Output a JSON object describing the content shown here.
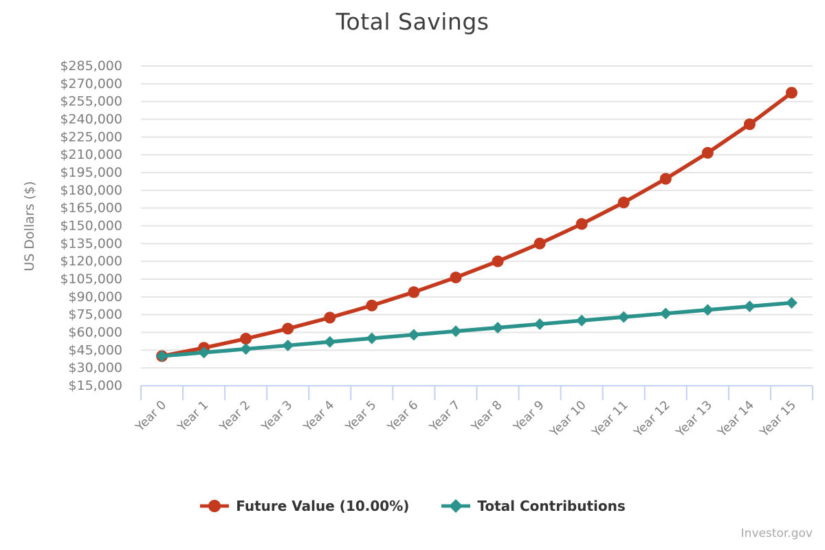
{
  "watermark": "Investor.gov",
  "chart_data": {
    "type": "line",
    "title": "Total Savings",
    "xlabel": "",
    "ylabel": "US Dollars ($)",
    "x_categories": [
      "Year 0",
      "Year 1",
      "Year 2",
      "Year 3",
      "Year 4",
      "Year 5",
      "Year 6",
      "Year 7",
      "Year 8",
      "Year 9",
      "Year 10",
      "Year 11",
      "Year 12",
      "Year 13",
      "Year 14",
      "Year 15"
    ],
    "ylim": [
      15000,
      285000
    ],
    "ytick_step": 15000,
    "ytick_prefix": "$",
    "grid": true,
    "grid_color": "#e4e4e4",
    "axis_color": "#c2d1f0",
    "legend_position": "bottom",
    "series": [
      {
        "name": "Future Value (10.00%)",
        "color": "#c33a1f",
        "marker": "circle",
        "values": [
          40000,
          47000,
          54700,
          63170,
          72487,
          82736,
          94009,
          106410,
          120051,
          135056,
          151562,
          169718,
          189690,
          211659,
          235825,
          262407
        ]
      },
      {
        "name": "Total Contributions",
        "color": "#2b938c",
        "marker": "diamond",
        "values": [
          40000,
          43000,
          46000,
          49000,
          52000,
          55000,
          58000,
          61000,
          64000,
          67000,
          70000,
          73000,
          76000,
          79000,
          82000,
          85000
        ]
      }
    ]
  }
}
